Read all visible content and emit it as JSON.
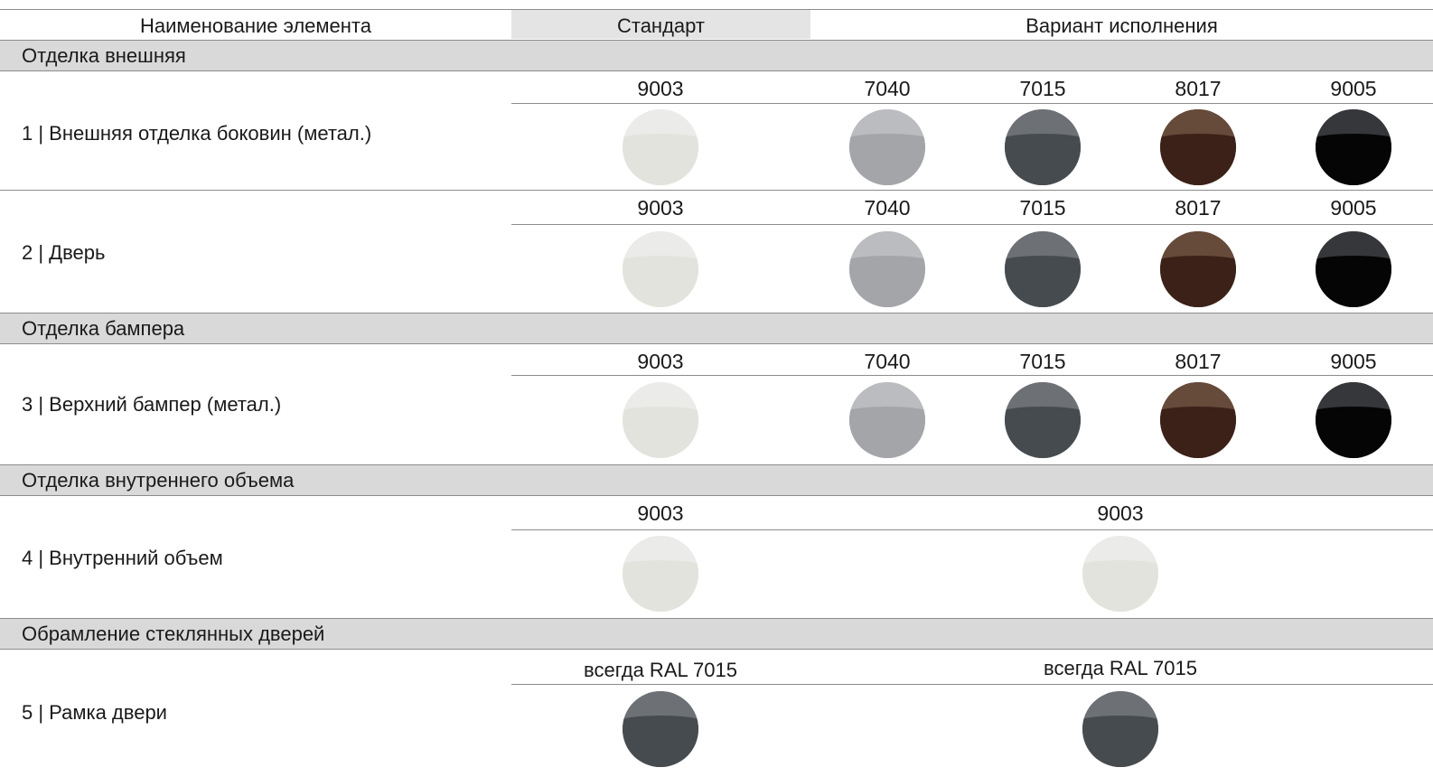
{
  "header": {
    "col_element": "Наименование элемента",
    "col_standard": "Стандарт",
    "col_variant": "Вариант исполнения"
  },
  "colors": {
    "9003": {
      "top": "#ebece9",
      "bottom": "#e3e3dd"
    },
    "7040": {
      "top": "#bbbcbf",
      "bottom": "#a4a5a8"
    },
    "7015": {
      "top": "#6d7075",
      "bottom": "#464b50"
    },
    "8017": {
      "top": "#664a3a",
      "bottom": "#3b2118"
    },
    "9005": {
      "top": "#35373a",
      "bottom": "#050505"
    }
  },
  "sections": [
    {
      "title": "Отделка внешняя",
      "rows": [
        {
          "label": "1 | Внешняя отделка боковин (метал.)",
          "standard": "9003",
          "variants": [
            "7040",
            "7015",
            "8017",
            "9005"
          ]
        },
        {
          "label": "2 | Дверь",
          "standard": "9003",
          "variants": [
            "7040",
            "7015",
            "8017",
            "9005"
          ]
        }
      ]
    },
    {
      "title": "Отделка бампера",
      "rows": [
        {
          "label": "3 | Верхний бампер (метал.)",
          "standard": "9003",
          "variants": [
            "7040",
            "7015",
            "8017",
            "9005"
          ]
        }
      ]
    },
    {
      "title": "Отделка внутреннего объема",
      "rows": [
        {
          "label": "4 | Внутренний объем",
          "standard": "9003",
          "variants": [
            "9003"
          ]
        }
      ]
    },
    {
      "title": "Обрамление стеклянных дверей",
      "rows": [
        {
          "label": "5 | Рамка двери",
          "standard": "всегда RAL 7015",
          "standard_color": "7015",
          "variants": [
            "всегда RAL 7015"
          ],
          "variant_color": "7015"
        }
      ]
    }
  ]
}
